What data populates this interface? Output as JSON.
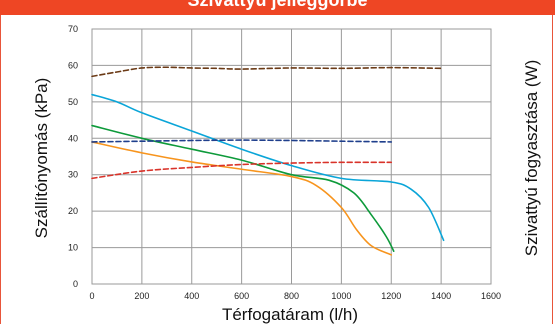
{
  "header": {
    "title": "Szivattyú jelleggörbe"
  },
  "chart_data": {
    "type": "line",
    "xlabel": "Térfogatáram (l/h)",
    "ylabel": "Szállítónyomás (kPa)",
    "y2label": "Szivattyú fogyasztása (W)",
    "xlim": [
      0,
      1600
    ],
    "ylim": [
      0,
      70
    ],
    "x_ticks": [
      0,
      200,
      400,
      600,
      800,
      1000,
      1200,
      1400,
      1600
    ],
    "y_ticks": [
      0,
      10,
      20,
      30,
      40,
      50,
      60,
      70
    ],
    "grid": true,
    "series": [
      {
        "color": "#0aa5d8",
        "style": "solid",
        "points": [
          [
            0,
            52
          ],
          [
            100,
            50
          ],
          [
            200,
            47
          ],
          [
            400,
            42
          ],
          [
            600,
            37
          ],
          [
            800,
            32.5
          ],
          [
            1000,
            29
          ],
          [
            1200,
            28
          ],
          [
            1280,
            26
          ],
          [
            1350,
            21
          ],
          [
            1410,
            12
          ]
        ]
      },
      {
        "color": "#0d9a3a",
        "style": "solid",
        "points": [
          [
            0,
            43.5
          ],
          [
            200,
            40
          ],
          [
            400,
            37
          ],
          [
            600,
            34
          ],
          [
            800,
            30
          ],
          [
            950,
            28.5
          ],
          [
            1050,
            25
          ],
          [
            1120,
            19
          ],
          [
            1180,
            13
          ],
          [
            1210,
            9
          ]
        ]
      },
      {
        "color": "#f7941d",
        "style": "solid",
        "points": [
          [
            0,
            39
          ],
          [
            200,
            36
          ],
          [
            400,
            33.5
          ],
          [
            600,
            31.5
          ],
          [
            800,
            29.5
          ],
          [
            900,
            27
          ],
          [
            1000,
            21
          ],
          [
            1060,
            15
          ],
          [
            1120,
            10.5
          ],
          [
            1200,
            8
          ]
        ]
      },
      {
        "color": "#6b3a16",
        "style": "dashed",
        "points": [
          [
            0,
            57
          ],
          [
            100,
            58.2
          ],
          [
            200,
            59.3
          ],
          [
            300,
            59.5
          ],
          [
            400,
            59.3
          ],
          [
            500,
            59.2
          ],
          [
            600,
            59.0
          ],
          [
            800,
            59.3
          ],
          [
            1000,
            59.2
          ],
          [
            1200,
            59.4
          ],
          [
            1400,
            59.2
          ]
        ]
      },
      {
        "color": "#1f3f8c",
        "style": "dashed",
        "points": [
          [
            0,
            39
          ],
          [
            200,
            39.2
          ],
          [
            400,
            39.4
          ],
          [
            600,
            39.5
          ],
          [
            800,
            39.4
          ],
          [
            1000,
            39.2
          ],
          [
            1200,
            39
          ]
        ]
      },
      {
        "color": "#d9332a",
        "style": "dashed",
        "points": [
          [
            0,
            29
          ],
          [
            200,
            31
          ],
          [
            400,
            32
          ],
          [
            600,
            32.8
          ],
          [
            800,
            33.2
          ],
          [
            1000,
            33.4
          ],
          [
            1200,
            33.4
          ]
        ]
      }
    ]
  }
}
